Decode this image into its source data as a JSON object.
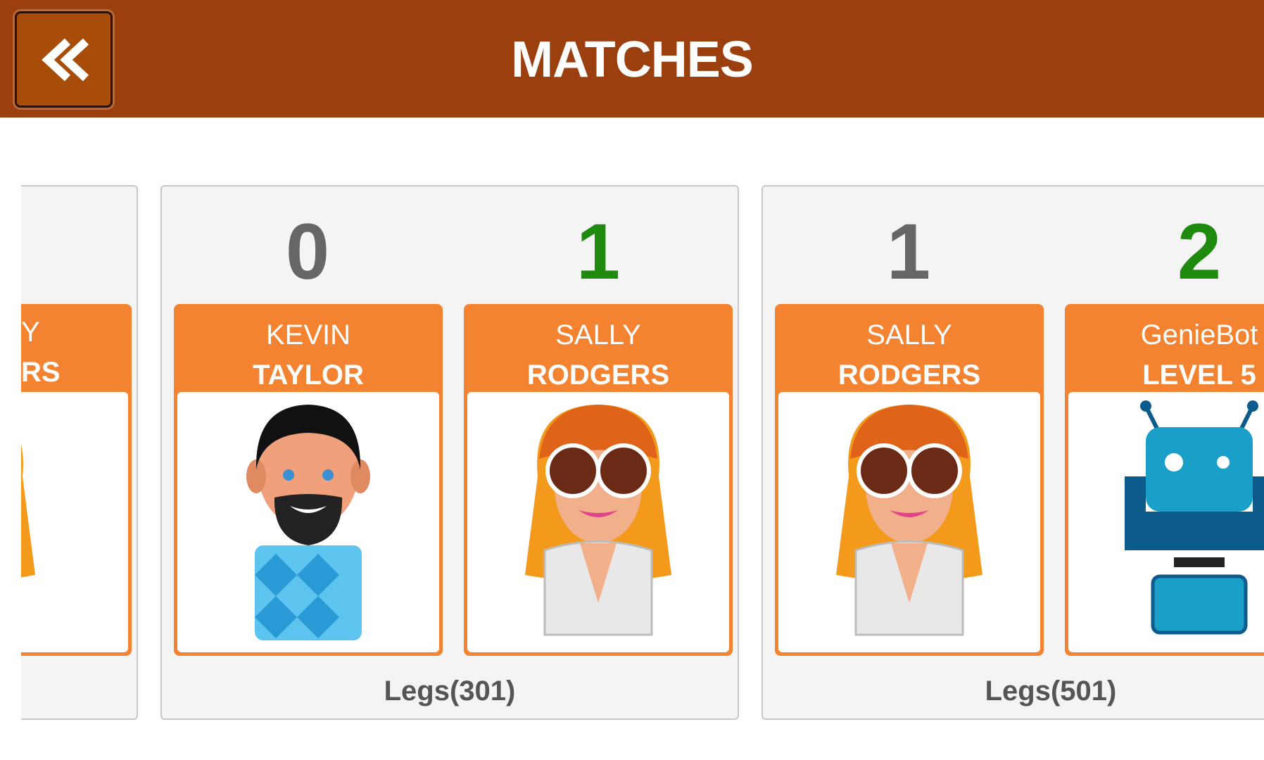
{
  "header": {
    "title": "MATCHES"
  },
  "partial_card": {
    "line1": "Y",
    "line2": "RS"
  },
  "matches": [
    {
      "scores": [
        0,
        1
      ],
      "players": [
        {
          "first": "KEVIN",
          "last": "TAYLOR"
        },
        {
          "first": "SALLY",
          "last": "RODGERS"
        }
      ],
      "legs": "Legs(301)"
    },
    {
      "scores": [
        1,
        2
      ],
      "players": [
        {
          "first": "SALLY",
          "last": "RODGERS"
        },
        {
          "first": "GenieBot",
          "last": "LEVEL 5"
        }
      ],
      "legs": "Legs(501)"
    }
  ]
}
